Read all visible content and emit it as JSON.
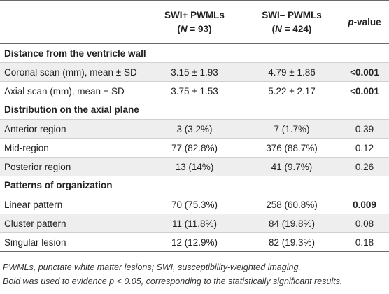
{
  "header": {
    "col1": "",
    "col2_line1": "SWI+ PWMLs",
    "col2_n_prefix": "(",
    "col2_n_var": "N",
    "col2_n_value": " = 93)",
    "col3_line1": "SWI– PWMLs",
    "col3_n_prefix": "(",
    "col3_n_var": "N",
    "col3_n_value": " = 424)",
    "col4_italic": "p",
    "col4_rest": "-value"
  },
  "sections": [
    {
      "title": "Distance from the ventricle wall",
      "rows": [
        {
          "label": "Coronal scan (mm), mean ± SD",
          "swi_pos": "3.15 ± 1.93",
          "swi_neg": "4.79 ± 1.86",
          "p": "<0.001",
          "bold": true
        },
        {
          "label": "Axial scan (mm), mean ± SD",
          "swi_pos": "3.75 ± 1.53",
          "swi_neg": "5.22 ± 2.17",
          "p": "<0.001",
          "bold": true
        }
      ]
    },
    {
      "title": "Distribution on the axial plane",
      "rows": [
        {
          "label": "Anterior region",
          "swi_pos": "3 (3.2%)",
          "swi_neg": "7 (1.7%)",
          "p": "0.39",
          "bold": false
        },
        {
          "label": "Mid-region",
          "swi_pos": "77 (82.8%)",
          "swi_neg": "376 (88.7%)",
          "p": "0.12",
          "bold": false
        },
        {
          "label": "Posterior region",
          "swi_pos": "13 (14%)",
          "swi_neg": "41 (9.7%)",
          "p": "0.26",
          "bold": false
        }
      ]
    },
    {
      "title": "Patterns of organization",
      "rows": [
        {
          "label": "Linear pattern",
          "swi_pos": "70 (75.3%)",
          "swi_neg": "258 (60.8%)",
          "p": "0.009",
          "bold": true
        },
        {
          "label": "Cluster pattern",
          "swi_pos": "11 (11.8%)",
          "swi_neg": "84 (19.8%)",
          "p": "0.08",
          "bold": false
        },
        {
          "label": "Singular lesion",
          "swi_pos": "12 (12.9%)",
          "swi_neg": "82 (19.3%)",
          "p": "0.18",
          "bold": false
        }
      ]
    }
  ],
  "footnotes": [
    "PWMLs, punctate white matter lesions; SWI, susceptibility-weighted imaging.",
    "Bold was used to evidence p < 0.05, corresponding to the statistically significant results."
  ]
}
